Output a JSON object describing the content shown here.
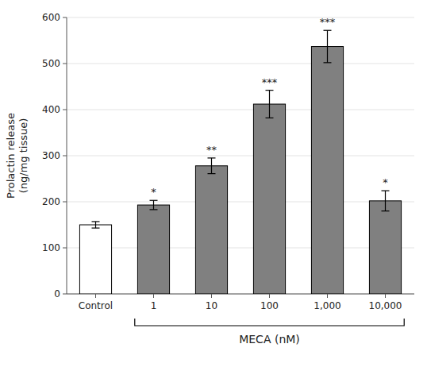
{
  "chart_data": {
    "type": "bar",
    "categories": [
      "Control",
      "1",
      "10",
      "100",
      "1,000",
      "10,000"
    ],
    "values": [
      150,
      193,
      278,
      412,
      537,
      202
    ],
    "errors": [
      7,
      10,
      17,
      30,
      35,
      22
    ],
    "colors": [
      "#ffffff",
      "#808080",
      "#808080",
      "#808080",
      "#808080",
      "#808080"
    ],
    "annotations": [
      {
        "category": "1",
        "text": "*"
      },
      {
        "category": "10",
        "text": "**"
      },
      {
        "category": "100",
        "text": "***"
      },
      {
        "category": "1,000",
        "text": "***"
      },
      {
        "category": "10,000",
        "text": "*"
      }
    ],
    "ylabel": "Prolactin release\n(ng/mg tissue)",
    "xlabel": "MECA (nM)",
    "ylim": [
      0,
      600
    ],
    "yticks": [
      0,
      100,
      200,
      300,
      400,
      500,
      600
    ]
  }
}
